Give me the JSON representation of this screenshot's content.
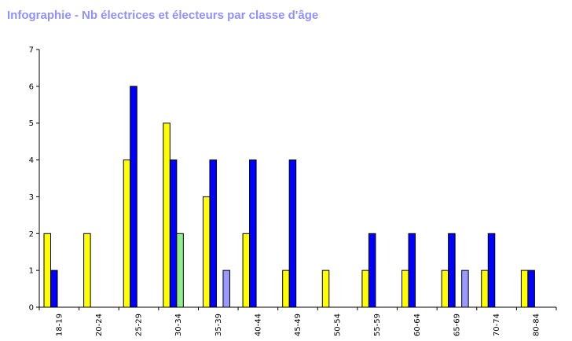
{
  "chart_data": {
    "type": "bar",
    "title": "Infographie - Nb électrices et électeurs par classe d'âge",
    "xlabel": "",
    "ylabel": "",
    "ylim": [
      0,
      7
    ],
    "yticks": [
      0,
      1,
      2,
      3,
      4,
      5,
      6,
      7
    ],
    "grid": false,
    "categories": [
      "18-19",
      "20-24",
      "25-29",
      "30-34",
      "35-39",
      "40-44",
      "45-49",
      "50-54",
      "55-59",
      "60-64",
      "65-69",
      "70-74",
      "80-84"
    ],
    "series": [
      {
        "color": "#ffff00",
        "values": [
          2,
          2,
          4,
          5,
          3,
          2,
          1,
          1,
          1,
          1,
          1,
          1,
          1
        ]
      },
      {
        "color": "#0000ff",
        "values": [
          1,
          0,
          6,
          4,
          4,
          4,
          4,
          0,
          2,
          2,
          2,
          2,
          1
        ]
      },
      {
        "color": "#90ee90",
        "values": [
          0,
          0,
          0,
          2,
          0,
          0,
          0,
          0,
          0,
          0,
          0,
          0,
          0
        ]
      },
      {
        "color": "#9999ff",
        "values": [
          0,
          0,
          0,
          0,
          1,
          0,
          0,
          0,
          0,
          0,
          1,
          0,
          0
        ]
      }
    ]
  }
}
